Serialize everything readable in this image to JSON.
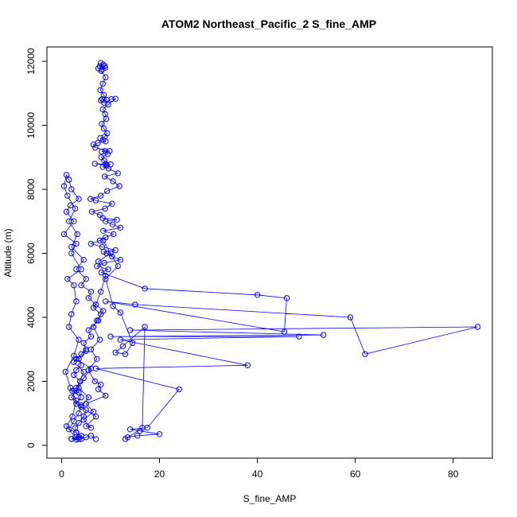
{
  "chart_data": {
    "type": "line",
    "title": "ATOM2 Northeast_Pacific_2 S_fine_AMP",
    "xlabel": "S_fine_AMP",
    "ylabel": "Altitude (m)",
    "xlim": [
      -3,
      88
    ],
    "ylim": [
      -400,
      12450
    ],
    "xticks": [
      0,
      20,
      40,
      60,
      80
    ],
    "yticks": [
      0,
      2000,
      4000,
      6000,
      8000,
      10000,
      12000
    ],
    "xtick_labels": [
      "0",
      "20",
      "40",
      "60",
      "80"
    ],
    "ytick_labels": [
      "0",
      "2000",
      "4000",
      "6000",
      "8000",
      "10000",
      "12000"
    ],
    "grid": false,
    "legend": "none",
    "series_color": "#0000ff",
    "marker": "open-circle",
    "series": [
      {
        "x": [
          8.0,
          8.5,
          7.8,
          8.9,
          8.2,
          7.5,
          8.8,
          8.1,
          9.0,
          8.4,
          7.9,
          8.6,
          9.2,
          8.3,
          8.0,
          8.7,
          10.2,
          11.0,
          9.5,
          8.4,
          8.9,
          9.1,
          8.2,
          8.6,
          9.3,
          8.8,
          7.9,
          8.5,
          9.0,
          7.4,
          6.5,
          6.9,
          9.8,
          8.2,
          8.9,
          9.4,
          8.1,
          8.7,
          9.0,
          10.0,
          6.8,
          9.2,
          8.4,
          9.6,
          11.5,
          8.8,
          10.5,
          11.8,
          9.3,
          8.0,
          5.9,
          7.0,
          10.3,
          8.9,
          6.2,
          7.8,
          8.4,
          11.3,
          9.0,
          10.4,
          12.0,
          8.5,
          10.6,
          9.0,
          7.8,
          6.0,
          8.3,
          11.0,
          8.6,
          9.2,
          10.3,
          12.0,
          8.7,
          7.2,
          9.5,
          8.1,
          17.0,
          40.0,
          46.0,
          45.5,
          9.0,
          15.0,
          59.0,
          62.0,
          85.0,
          14.0,
          53.5,
          10.0,
          48.5,
          12.0,
          38.0,
          7.0,
          24.0,
          17.5,
          14.0,
          16.0,
          20.0,
          15.5,
          13.5,
          13.0,
          16.5,
          17.0,
          12.5,
          11.0,
          13.0,
          14.5,
          12.0,
          10.5,
          9.0,
          11.5,
          8.5,
          10.0,
          7.5,
          9.0,
          8.0,
          7.0,
          8.5,
          7.2,
          6.5,
          7.8,
          6.0,
          7.2,
          5.5,
          6.8,
          8.0,
          7.5,
          9.0,
          5.0,
          6.5,
          4.5,
          6.0,
          5.0,
          7.0,
          4.0,
          5.5,
          3.5,
          4.5,
          6.0,
          3.0,
          5.0,
          4.0,
          2.5,
          4.5,
          3.8,
          3.0,
          2.0,
          4.0,
          3.5,
          2.5,
          1.5,
          3.0,
          4.0,
          2.0,
          3.5,
          2.8,
          1.0,
          2.2,
          3.0,
          1.8,
          0.8,
          2.5,
          3.5,
          1.5,
          2.0,
          3.0,
          2.5,
          1.2,
          4.0,
          2.0,
          3.0,
          0.5,
          2.5,
          1.0,
          1.8,
          3.5,
          2.0,
          1.5,
          1.0,
          0.5,
          1.2,
          2.8,
          1.5,
          3.2,
          2.0,
          4.5,
          3.0,
          5.0,
          4.0,
          6.0,
          5.5,
          7.0,
          6.5,
          8.0,
          7.5,
          5.5,
          6.0,
          4.5,
          5.0,
          3.5,
          4.0,
          3.0,
          2.5,
          3.8,
          3.0,
          2.2,
          3.5,
          4.0,
          3.0,
          5.0,
          4.5,
          3.5,
          2.8,
          3.0,
          3.5,
          2.0,
          3.0,
          4.0,
          5.0,
          6.0,
          7.0
        ],
        "y": [
          11950,
          11900,
          11850,
          11800,
          11750,
          11780,
          11850,
          11700,
          11500,
          11300,
          11100,
          10950,
          10800,
          10820,
          10780,
          10700,
          10820,
          10830,
          10650,
          10500,
          10350,
          10200,
          10050,
          9900,
          9750,
          9650,
          9600,
          9550,
          9500,
          9450,
          9400,
          9300,
          9200,
          9180,
          9200,
          9100,
          9000,
          8900,
          8800,
          8780,
          8800,
          8750,
          8700,
          8650,
          8500,
          8400,
          8250,
          8100,
          7950,
          7800,
          7700,
          7650,
          7550,
          7400,
          7300,
          7200,
          7100,
          7050,
          7000,
          6900,
          6800,
          6700,
          6600,
          6500,
          6400,
          6300,
          6200,
          6100,
          6050,
          6000,
          5900,
          5800,
          5700,
          5600,
          5500,
          5400,
          4900,
          4700,
          4600,
          3550,
          4500,
          4400,
          4000,
          2850,
          3700,
          3600,
          3450,
          3400,
          3400,
          3300,
          2500,
          2400,
          1750,
          550,
          500,
          450,
          350,
          300,
          250,
          200,
          550,
          3700,
          3100,
          2900,
          2850,
          3200,
          4150,
          4350,
          5200,
          5600,
          6400,
          6000,
          5750,
          5300,
          4800,
          4400,
          4200,
          3900,
          3700,
          3300,
          3000,
          2700,
          2350,
          2000,
          1900,
          1750,
          1550,
          1300,
          1050,
          800,
          550,
          600,
          900,
          1200,
          1500,
          1800,
          2100,
          2400,
          2700,
          3000,
          2850,
          2600,
          2300,
          2000,
          1700,
          1500,
          1250,
          1000,
          750,
          500,
          400,
          300,
          200,
          200,
          250,
          600,
          900,
          1400,
          1800,
          2300,
          2800,
          3300,
          3700,
          4100,
          4500,
          5000,
          5200,
          5500,
          6000,
          6300,
          6600,
          7000,
          7300,
          7500,
          7700,
          8000,
          8300,
          8450,
          8100,
          7800,
          7400,
          7000,
          6600,
          6200,
          5800,
          5500,
          5200,
          5000,
          4800,
          4600,
          4400,
          4300,
          4100,
          3900,
          3600,
          3400,
          3200,
          2950,
          2700,
          2500,
          2350,
          2200,
          2000,
          1800,
          1700,
          1650,
          1500,
          1300,
          1100,
          900,
          700,
          550,
          400,
          250,
          200,
          180,
          200,
          250,
          300,
          200
        ]
      }
    ]
  }
}
